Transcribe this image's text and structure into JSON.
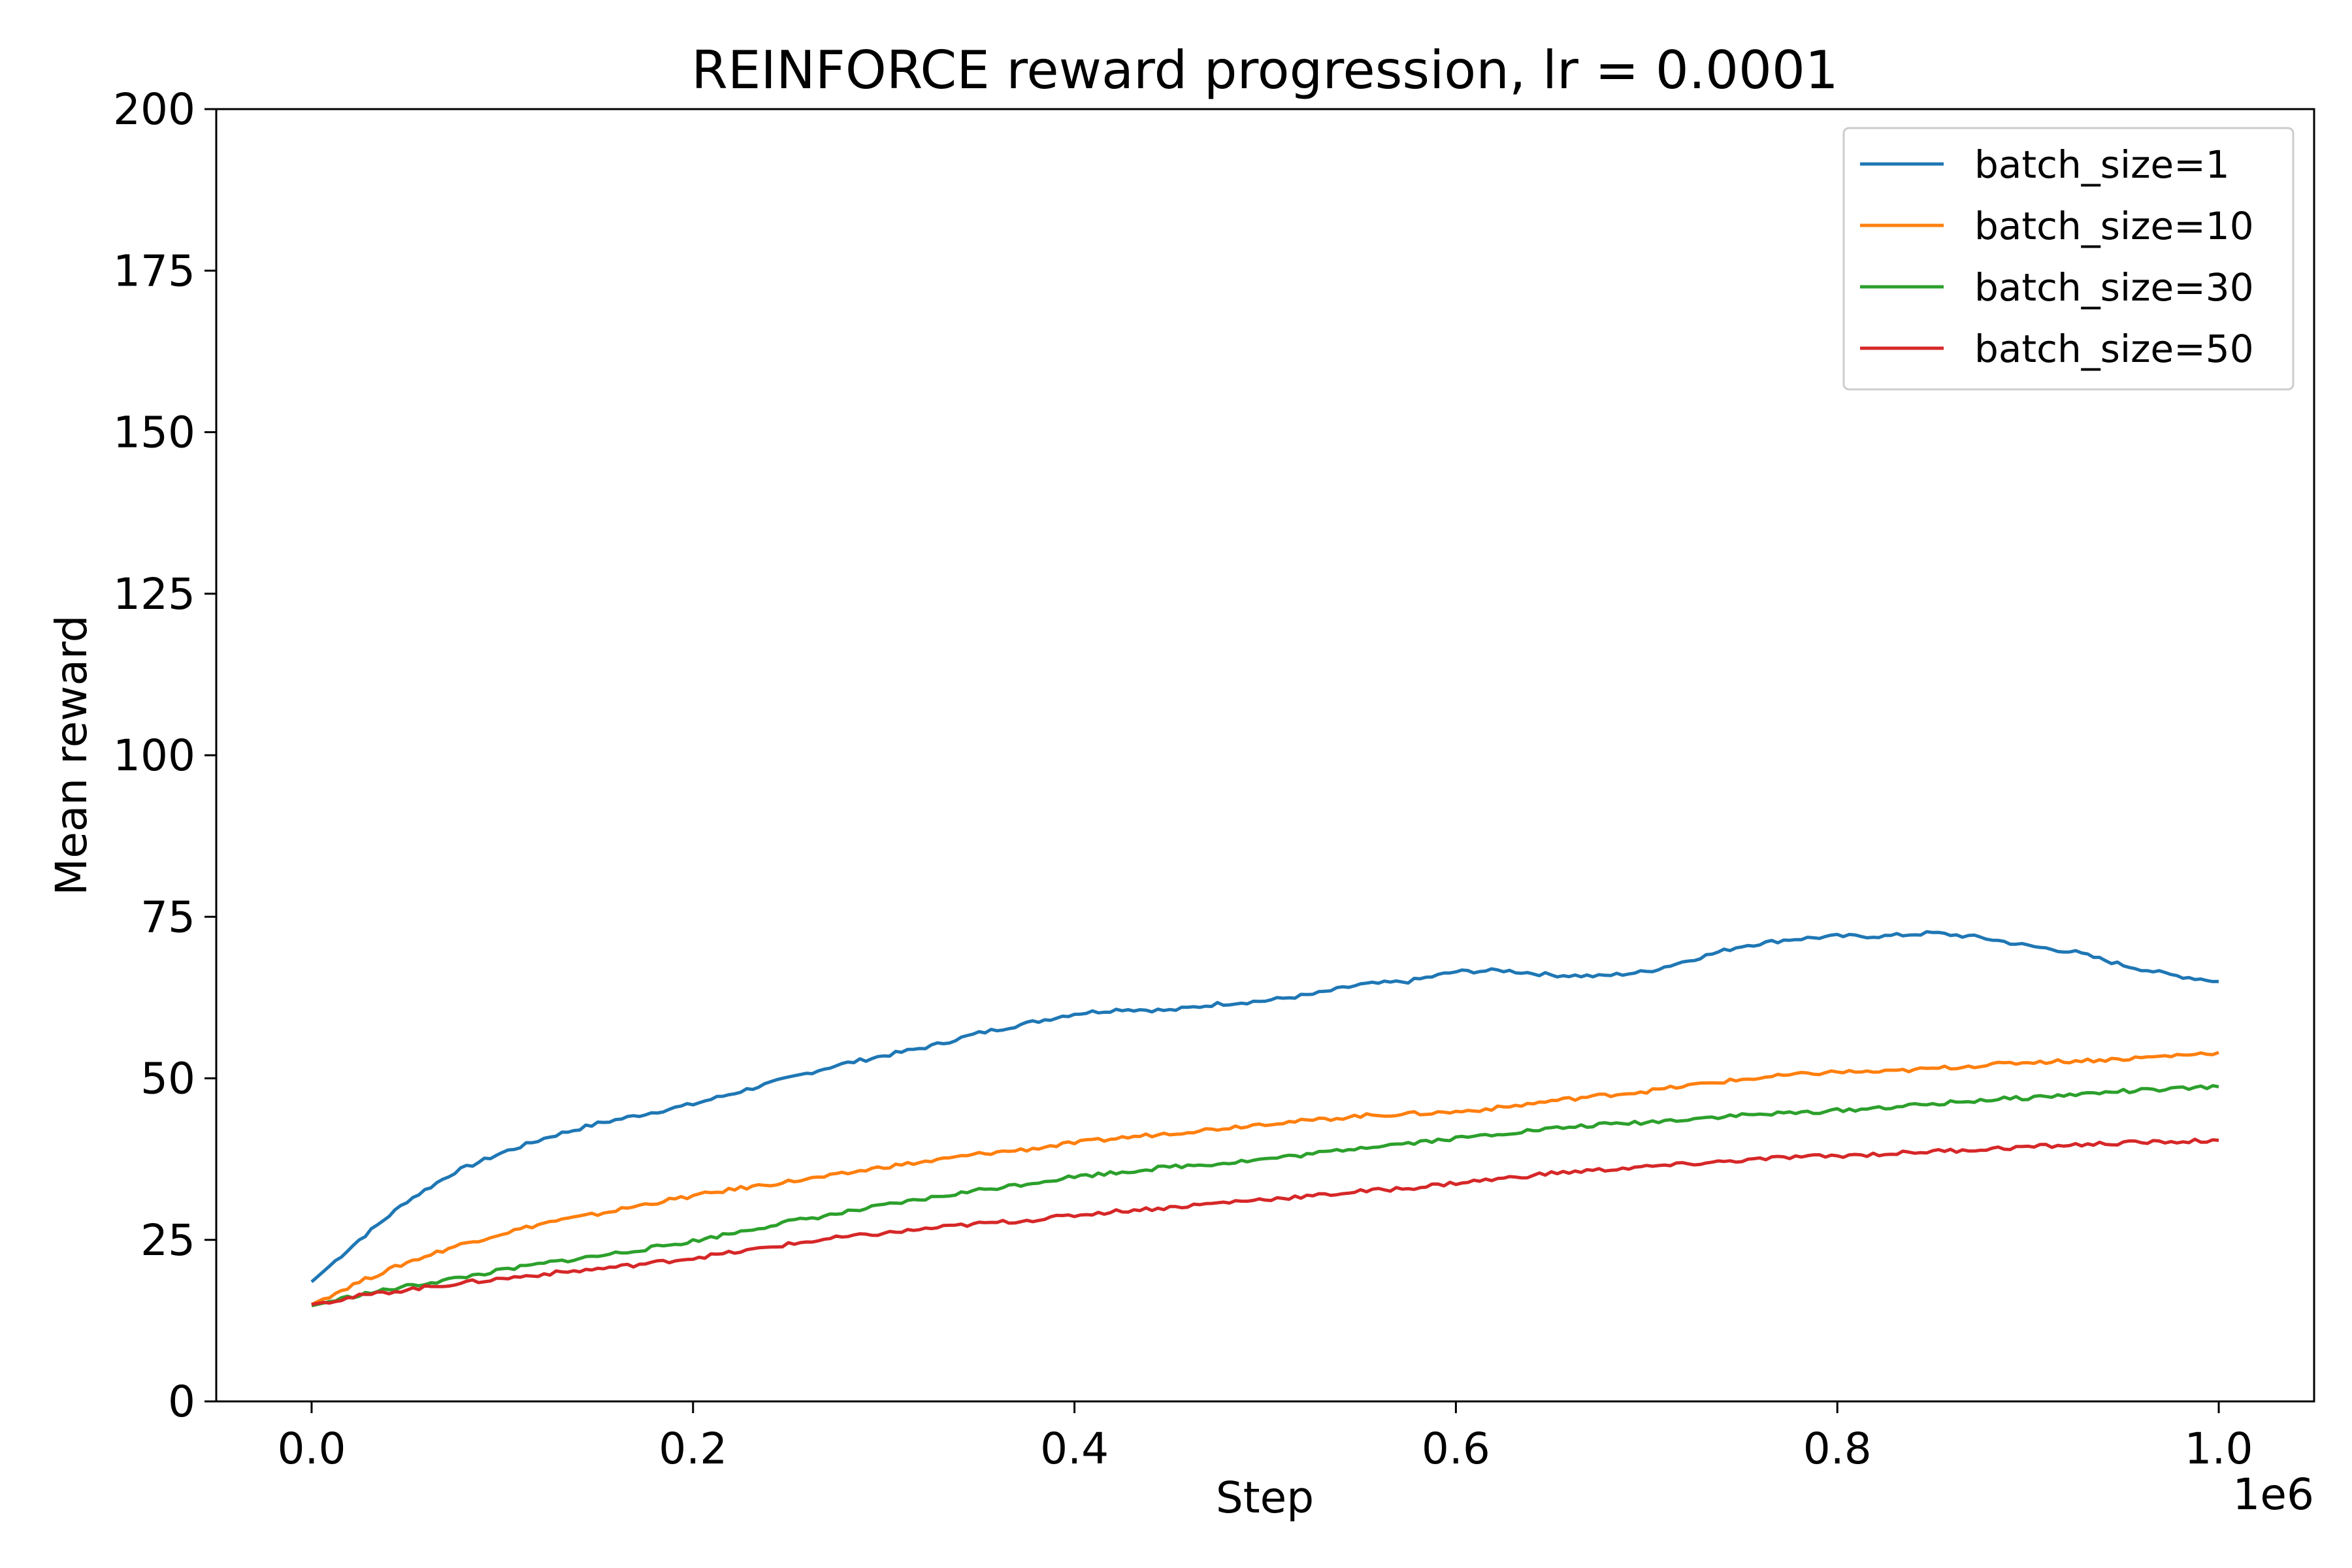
{
  "chart_data": {
    "type": "line",
    "title": "REINFORCE reward progression, lr = 0.0001",
    "xlabel": "Step",
    "ylabel": "Mean reward",
    "x_offset_label": "1e6",
    "xlim": [
      -50000,
      1050000
    ],
    "ylim": [
      0,
      200
    ],
    "xticks": [
      0,
      200000,
      400000,
      600000,
      800000,
      1000000
    ],
    "xtick_labels": [
      "0.0",
      "0.2",
      "0.4",
      "0.6",
      "0.8",
      "1.0"
    ],
    "yticks": [
      0,
      25,
      50,
      75,
      100,
      125,
      150,
      175,
      200
    ],
    "ytick_labels": [
      "0",
      "25",
      "50",
      "75",
      "100",
      "125",
      "150",
      "175",
      "200"
    ],
    "grid": false,
    "legend_position": "top-right",
    "x": [
      0,
      25000,
      50000,
      75000,
      100000,
      125000,
      150000,
      175000,
      200000,
      225000,
      250000,
      275000,
      300000,
      325000,
      350000,
      375000,
      400000,
      425000,
      450000,
      475000,
      500000,
      525000,
      550000,
      575000,
      600000,
      625000,
      650000,
      675000,
      700000,
      725000,
      750000,
      775000,
      800000,
      825000,
      850000,
      875000,
      900000,
      925000,
      950000,
      975000,
      1000000
    ],
    "series": [
      {
        "name": "batch_size=1",
        "color": "#1f77b4",
        "values": [
          18.5,
          25.0,
          31.0,
          35.5,
          38.5,
          41.0,
          43.0,
          44.5,
          46.0,
          48.0,
          50.0,
          52.0,
          53.5,
          55.0,
          57.0,
          58.5,
          60.0,
          60.7,
          60.5,
          61.5,
          62.0,
          63.0,
          64.5,
          65.0,
          66.5,
          66.7,
          66.0,
          65.8,
          66.5,
          68.5,
          70.5,
          71.5,
          72.0,
          72.0,
          72.5,
          71.8,
          70.5,
          69.5,
          67.5,
          66.0,
          65.0
        ]
      },
      {
        "name": "batch_size=10",
        "color": "#ff7f0e",
        "values": [
          15.0,
          18.5,
          21.5,
          24.0,
          26.0,
          27.8,
          29.0,
          30.5,
          31.8,
          33.0,
          34.0,
          35.0,
          36.3,
          37.2,
          38.3,
          39.0,
          40.0,
          40.8,
          41.5,
          42.2,
          43.0,
          43.5,
          44.2,
          44.5,
          44.8,
          45.5,
          46.5,
          47.3,
          48.0,
          49.0,
          49.8,
          50.5,
          51.0,
          51.0,
          51.5,
          52.0,
          52.5,
          52.7,
          53.0,
          53.5,
          54.0
        ]
      },
      {
        "name": "batch_size=30",
        "color": "#2ca02c",
        "values": [
          14.8,
          16.5,
          17.8,
          19.0,
          20.3,
          21.5,
          22.5,
          23.6,
          24.8,
          26.3,
          27.8,
          29.0,
          30.3,
          31.5,
          32.7,
          33.7,
          34.8,
          35.5,
          36.3,
          36.8,
          37.5,
          38.3,
          39.3,
          40.0,
          40.7,
          41.5,
          42.2,
          42.8,
          43.2,
          43.8,
          44.3,
          44.6,
          45.0,
          45.5,
          46.0,
          46.6,
          47.0,
          47.5,
          48.0,
          48.3,
          48.7
        ]
      },
      {
        "name": "batch_size=50",
        "color": "#d62728",
        "values": [
          15.0,
          16.3,
          17.3,
          18.2,
          19.0,
          19.8,
          20.5,
          21.3,
          22.2,
          23.2,
          24.3,
          25.3,
          26.0,
          26.8,
          27.5,
          28.0,
          28.8,
          29.5,
          30.0,
          30.7,
          31.3,
          31.8,
          32.5,
          33.0,
          33.8,
          34.5,
          35.3,
          35.8,
          36.3,
          36.8,
          37.3,
          37.8,
          38.0,
          38.3,
          38.7,
          39.0,
          39.4,
          39.7,
          40.0,
          40.2,
          40.4
        ]
      }
    ]
  }
}
